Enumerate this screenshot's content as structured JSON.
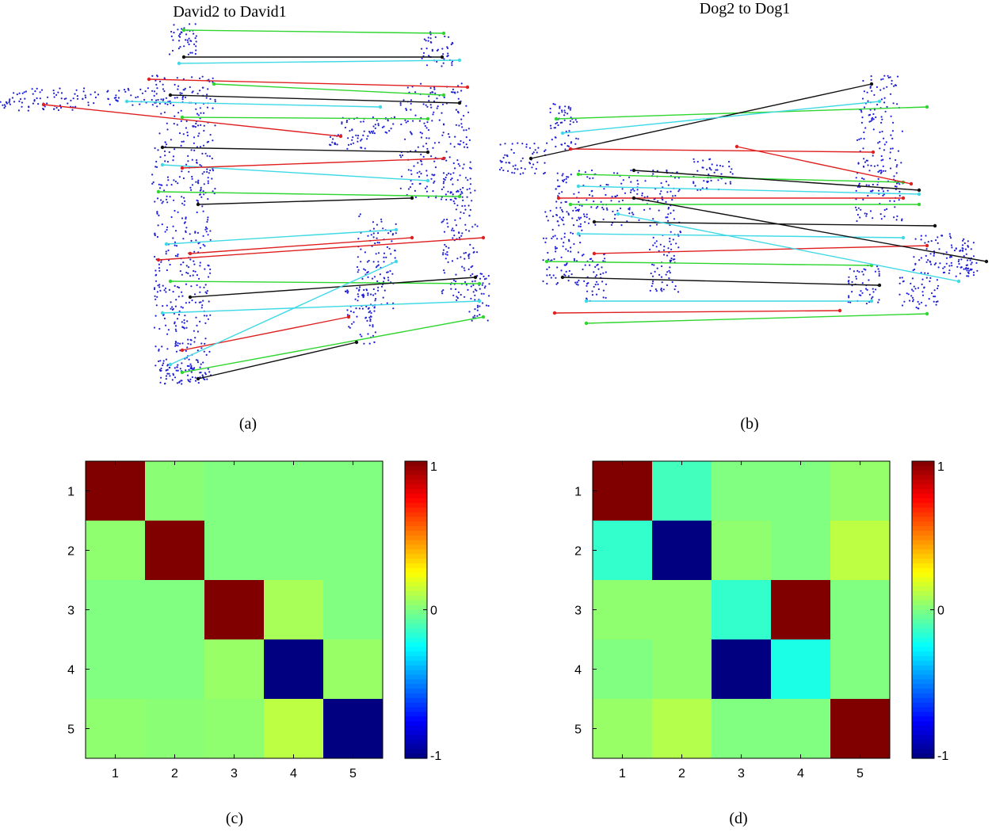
{
  "panels": {
    "a": {
      "title": "David2 to David1",
      "caption": "(a)"
    },
    "b": {
      "title": "Dog2 to Dog1",
      "caption": "(b)"
    },
    "c": {
      "caption": "(c)"
    },
    "d": {
      "caption": "(d)"
    }
  },
  "colors": {
    "points": "#1f1fd6",
    "match_green": "#2fd62f",
    "match_cyan": "#3fd9e6",
    "match_red": "#e02020",
    "match_black": "#111111"
  },
  "chart_data": [
    {
      "type": "heatmap",
      "panel": "c",
      "rows": [
        1,
        2,
        3,
        4,
        5
      ],
      "cols": [
        1,
        2,
        3,
        4,
        5
      ],
      "values": [
        [
          1.0,
          0.02,
          0.0,
          0.0,
          0.0
        ],
        [
          0.03,
          1.0,
          0.0,
          0.0,
          0.0
        ],
        [
          0.0,
          0.0,
          1.0,
          0.08,
          0.0
        ],
        [
          0.0,
          0.0,
          0.05,
          -1.0,
          0.05
        ],
        [
          0.03,
          0.02,
          0.03,
          0.12,
          -1.0
        ]
      ],
      "xticks": [
        "1",
        "2",
        "3",
        "4",
        "5"
      ],
      "yticks": [
        "1",
        "2",
        "3",
        "4",
        "5"
      ],
      "colorbar": {
        "min": -1,
        "max": 1,
        "ticks": [
          "1",
          "0",
          "-1"
        ],
        "colormap": "jet"
      }
    },
    {
      "type": "heatmap",
      "panel": "d",
      "rows": [
        1,
        2,
        3,
        4,
        5
      ],
      "cols": [
        1,
        2,
        3,
        4,
        5
      ],
      "values": [
        [
          1.0,
          -0.12,
          0.0,
          0.0,
          0.04
        ],
        [
          -0.15,
          -1.0,
          0.03,
          0.0,
          0.12
        ],
        [
          0.03,
          0.03,
          -0.15,
          1.0,
          0.0
        ],
        [
          0.0,
          0.03,
          -1.0,
          -0.2,
          0.0
        ],
        [
          0.05,
          0.1,
          0.0,
          0.0,
          1.0
        ]
      ],
      "xticks": [
        "1",
        "2",
        "3",
        "4",
        "5"
      ],
      "yticks": [
        "1",
        "2",
        "3",
        "4",
        "5"
      ],
      "colorbar": {
        "min": -1,
        "max": 1,
        "ticks": [
          "1",
          "0",
          "-1"
        ],
        "colormap": "jet"
      }
    }
  ]
}
